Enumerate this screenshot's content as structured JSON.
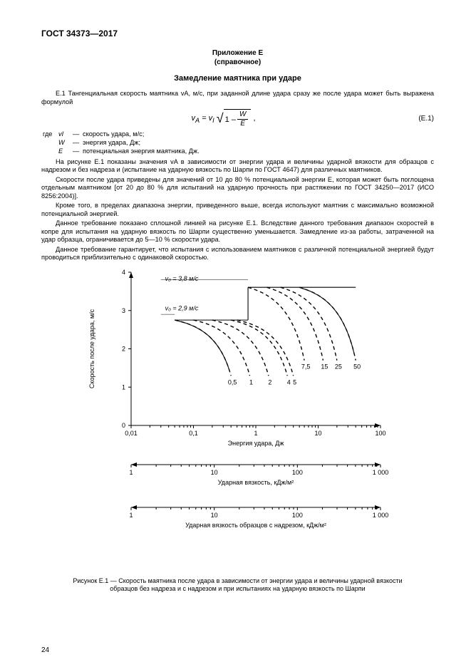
{
  "standard_code": "ГОСТ 34373—2017",
  "appendix": {
    "title": "Приложение Е",
    "subtitle": "(справочное)"
  },
  "section_title": "Замедление маятника при ударе",
  "intro": {
    "lead": "Е.1 Тангенциальная скорость маятника vA, м/с, при заданной длине удара сразу же после удара может быть выражена формулой"
  },
  "equation": {
    "lhs": "v",
    "lhs_sub": "A",
    "eq": " = ",
    "v1": "v",
    "v1_sub": "I",
    "one_minus": "1 – ",
    "frac_num": "W",
    "frac_den": "E",
    "comma": " ,",
    "number": "(Е.1)"
  },
  "defs": {
    "where": "где",
    "rows": [
      {
        "sym": "vI",
        "desc": "скорость удара, м/с;"
      },
      {
        "sym": "W",
        "desc": "энергия удара, Дж;"
      },
      {
        "sym": "E",
        "desc": "потенциальная энергия маятника, Дж."
      }
    ]
  },
  "paras": [
    "На рисунке Е.1 показаны значения vA в зависимости от энергии удара и величины ударной вязкости для образцов с надрезом и без надреза и (испытание на ударную вязкость по Шарпи по ГОСТ 4647) для различных маятников.",
    "Скорости после удара приведены для значений от 10 до 80 % потенциальной энергии E, которая может быть поглощена отдельным маятником [от 20 до 80 % для испытаний на ударную прочность при растяжении по ГОСТ 34250—2017 (ИСО 8256:2004)].",
    "Кроме того, в пределах диапазона энергии, приведенного выше, всегда используют маятник с максимально возможной потенциальной энергией.",
    "Данное требование показано сплошной линией на рисунке Е.1. Вследствие данного требования диапазон скоростей в копре для испытания на ударную вязкость по Шарпи существенно уменьшается. Замедление из-за работы, затраченной на удар образца, ограничивается до 5—10 % скорости удара.",
    "Данное требование гарантирует, что испытания с использованием маятников с различной потенциальной энергией будут проводиться приблизительно с одинаковой скоростью."
  ],
  "chart": {
    "colors": {
      "axis": "#000000",
      "grid": "#000000",
      "curve": "#000000",
      "solid": "#000000",
      "text": "#000000",
      "bg": "#ffffff"
    },
    "stroke_width": {
      "axis": 1,
      "curve": 1.4,
      "solid": 1.1,
      "tick": 1
    },
    "fontsize": {
      "axis_label": 9,
      "tick": 9,
      "inner": 9
    },
    "y_axis": {
      "label": "Скорость после удара, м/с",
      "ticks": [
        0,
        1,
        2,
        3,
        4
      ]
    },
    "x_axis": {
      "label": "Энергия удара, Дж",
      "ticks_text": [
        "0,01",
        "0,1",
        "1",
        "10",
        "100"
      ]
    },
    "inner_labels": {
      "v0_38": "v₀ = 3,8 м/с",
      "v0_29": "v₀ = 2,9 м/с"
    },
    "curve_labels": [
      "0,5",
      "1",
      "2",
      "4",
      "5",
      "7,5",
      "15",
      "25",
      "50"
    ],
    "aux_axes": [
      {
        "label": "Ударная вязкость, кДж/м²",
        "ticks": [
          "1",
          "10",
          "100",
          "1 000"
        ]
      },
      {
        "label": "Ударная вязкость образцов с надрезом, кДж/м²",
        "ticks": [
          "1",
          "10",
          "100",
          "1 000"
        ]
      }
    ]
  },
  "figure_caption_1": "Рисунок Е.1 — Скорость маятника после удара в зависимости от энергии удара и величины ударной вязкости",
  "figure_caption_2": "образцов без надреза и с надрезом и при испытаниях на ударную вязкость по Шарпи",
  "page_number": "24"
}
